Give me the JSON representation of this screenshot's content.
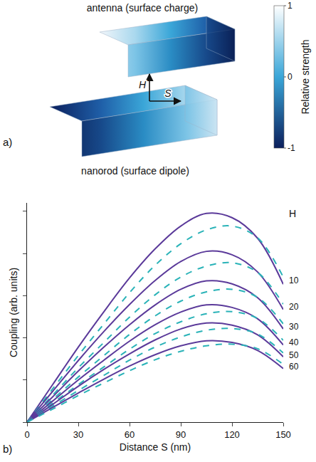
{
  "diagram": {
    "panel_label": "a)",
    "antenna": {
      "label": "antenna (surface charge)"
    },
    "nanorod": {
      "label": "nanorod (surface dipole)"
    },
    "arrows": [
      "H",
      "S"
    ],
    "colorbar": {
      "title": "Relative strength",
      "range": [
        -1,
        1
      ],
      "ticks": [
        1,
        0,
        -1
      ]
    }
  },
  "chart_data": {
    "type": "line",
    "panel_label": "b)",
    "x_label": "Distance S (nm)",
    "y_label": "Coupling (arb. units)",
    "series_label_title": "H",
    "x": [
      0,
      15,
      30,
      45,
      60,
      75,
      90,
      105,
      120,
      135,
      150
    ],
    "xlim": [
      0,
      150
    ],
    "xticks": [
      0,
      30,
      60,
      90,
      120,
      150
    ],
    "ylim": [
      0,
      5.2
    ],
    "yticks": [
      0,
      1,
      2,
      3,
      4,
      5
    ],
    "tick_labels": "x",
    "grid": false,
    "series": [
      {
        "name": "10",
        "color": "#5b3a9a",
        "line_style": "solid",
        "values": [
          0,
          0.89,
          1.78,
          2.62,
          3.42,
          4.11,
          4.65,
          4.95,
          4.85,
          4.36,
          3.27
        ]
      },
      {
        "name": "10",
        "color": "#2ab3b8",
        "line_style": "dashed",
        "values": [
          0,
          0.79,
          1.58,
          2.33,
          3.07,
          3.72,
          4.23,
          4.56,
          4.65,
          4.37,
          3.44
        ]
      },
      {
        "name": "20",
        "color": "#5b3a9a",
        "line_style": "solid",
        "values": [
          0,
          0.73,
          1.46,
          2.15,
          2.79,
          3.36,
          3.81,
          4.05,
          3.97,
          3.56,
          2.67
        ]
      },
      {
        "name": "20",
        "color": "#2ab3b8",
        "line_style": "dashed",
        "values": [
          0,
          0.64,
          1.29,
          1.89,
          2.49,
          3.02,
          3.44,
          3.7,
          3.78,
          3.55,
          2.8
        ]
      },
      {
        "name": "30",
        "color": "#5b3a9a",
        "line_style": "solid",
        "values": [
          0,
          0.6,
          1.21,
          1.78,
          2.31,
          2.78,
          3.15,
          3.35,
          3.28,
          2.95,
          2.21
        ]
      },
      {
        "name": "30",
        "color": "#2ab3b8",
        "line_style": "dashed",
        "values": [
          0,
          0.54,
          1.07,
          1.58,
          2.08,
          2.52,
          2.87,
          3.09,
          3.15,
          2.96,
          2.33
        ]
      },
      {
        "name": "40",
        "color": "#5b3a9a",
        "line_style": "solid",
        "values": [
          0,
          0.5,
          1.0,
          1.47,
          1.92,
          2.31,
          2.61,
          2.78,
          2.72,
          2.45,
          1.83
        ]
      },
      {
        "name": "40",
        "color": "#2ab3b8",
        "line_style": "dashed",
        "values": [
          0,
          0.45,
          0.89,
          1.31,
          1.73,
          2.1,
          2.38,
          2.57,
          2.62,
          2.46,
          1.94
        ]
      },
      {
        "name": "50",
        "color": "#5b3a9a",
        "line_style": "solid",
        "values": [
          0,
          0.42,
          0.85,
          1.25,
          1.62,
          1.95,
          2.21,
          2.35,
          2.3,
          2.07,
          1.55
        ]
      },
      {
        "name": "50",
        "color": "#2ab3b8",
        "line_style": "dashed",
        "values": [
          0,
          0.38,
          0.75,
          1.11,
          1.47,
          1.78,
          2.02,
          2.18,
          2.22,
          2.09,
          1.64
        ]
      },
      {
        "name": "60",
        "color": "#5b3a9a",
        "line_style": "solid",
        "values": [
          0,
          0.35,
          0.69,
          1.02,
          1.33,
          1.6,
          1.81,
          1.93,
          1.89,
          1.7,
          1.27
        ]
      },
      {
        "name": "60",
        "color": "#2ab3b8",
        "line_style": "dashed",
        "values": [
          0,
          0.31,
          0.63,
          0.93,
          1.22,
          1.48,
          1.68,
          1.81,
          1.85,
          1.74,
          1.37
        ]
      }
    ]
  }
}
